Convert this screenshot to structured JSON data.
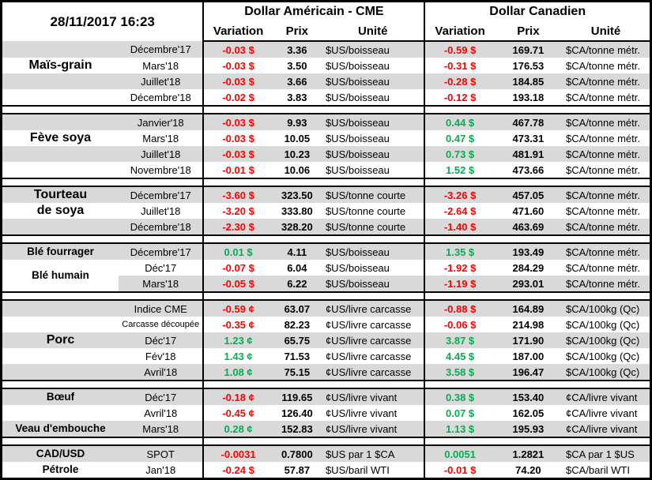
{
  "header": {
    "datetime": "28/11/2017 16:23",
    "usd_title": "Dollar Américain - CME",
    "cad_title": "Dollar Canadien",
    "col_variation": "Variation",
    "col_prix": "Prix",
    "col_unite": "Unité"
  },
  "colors": {
    "negative": "#ff0000",
    "positive": "#00b050",
    "row_shade": "#d9d9d9",
    "border": "#000000"
  },
  "groups": [
    {
      "name": "Maïs-grain",
      "rows": [
        {
          "category": "",
          "month": "Décembre'17",
          "usd_var": "-0.03 $",
          "usd_dir": "neg",
          "usd_prix": "3.36",
          "usd_unit": "$US/boisseau",
          "cad_var": "-0.59 $",
          "cad_dir": "neg",
          "cad_prix": "169.71",
          "cad_unit": "$CA/tonne métr."
        },
        {
          "category": "Maïs-grain",
          "cat_large": true,
          "month": "Mars'18",
          "usd_var": "-0.03 $",
          "usd_dir": "neg",
          "usd_prix": "3.50",
          "usd_unit": "$US/boisseau",
          "cad_var": "-0.31 $",
          "cad_dir": "neg",
          "cad_prix": "176.53",
          "cad_unit": "$CA/tonne métr."
        },
        {
          "category": "",
          "month": "Juillet'18",
          "usd_var": "-0.03 $",
          "usd_dir": "neg",
          "usd_prix": "3.66",
          "usd_unit": "$US/boisseau",
          "cad_var": "-0.28 $",
          "cad_dir": "neg",
          "cad_prix": "184.85",
          "cad_unit": "$CA/tonne métr."
        },
        {
          "category": "",
          "month": "Décembre'18",
          "usd_var": "-0.02 $",
          "usd_dir": "neg",
          "usd_prix": "3.83",
          "usd_unit": "$US/boisseau",
          "cad_var": "-0.12 $",
          "cad_dir": "neg",
          "cad_prix": "193.18",
          "cad_unit": "$CA/tonne métr."
        }
      ]
    },
    {
      "name": "Fève soya",
      "rows": [
        {
          "category": "",
          "month": "Janvier'18",
          "usd_var": "-0.03 $",
          "usd_dir": "neg",
          "usd_prix": "9.93",
          "usd_unit": "$US/boisseau",
          "cad_var": "0.44 $",
          "cad_dir": "pos",
          "cad_prix": "467.78",
          "cad_unit": "$CA/tonne métr."
        },
        {
          "category": "Fève soya",
          "cat_large": true,
          "month": "Mars'18",
          "usd_var": "-0.03 $",
          "usd_dir": "neg",
          "usd_prix": "10.05",
          "usd_unit": "$US/boisseau",
          "cad_var": "0.47 $",
          "cad_dir": "pos",
          "cad_prix": "473.31",
          "cad_unit": "$CA/tonne métr."
        },
        {
          "category": "",
          "month": "Juillet'18",
          "usd_var": "-0.03 $",
          "usd_dir": "neg",
          "usd_prix": "10.23",
          "usd_unit": "$US/boisseau",
          "cad_var": "0.73 $",
          "cad_dir": "pos",
          "cad_prix": "481.91",
          "cad_unit": "$CA/tonne métr."
        },
        {
          "category": "",
          "month": "Novembre'18",
          "usd_var": "-0.01 $",
          "usd_dir": "neg",
          "usd_prix": "10.06",
          "usd_unit": "$US/boisseau",
          "cad_var": "1.52 $",
          "cad_dir": "pos",
          "cad_prix": "473.66",
          "cad_unit": "$CA/tonne métr."
        }
      ]
    },
    {
      "name": "Tourteau de soya",
      "rows": [
        {
          "category": "Tourteau",
          "cat_large": true,
          "month": "Décembre'17",
          "usd_var": "-3.60 $",
          "usd_dir": "neg",
          "usd_prix": "323.50",
          "usd_unit": "$US/tonne courte",
          "cad_var": "-3.26 $",
          "cad_dir": "neg",
          "cad_prix": "457.05",
          "cad_unit": "$CA/tonne métr."
        },
        {
          "category": "de soya",
          "cat_large": true,
          "month": "Juillet'18",
          "usd_var": "-3.20 $",
          "usd_dir": "neg",
          "usd_prix": "333.80",
          "usd_unit": "$US/tonne courte",
          "cad_var": "-2.64 $",
          "cad_dir": "neg",
          "cad_prix": "471.60",
          "cad_unit": "$CA/tonne métr."
        },
        {
          "category": "",
          "month": "Décembre'18",
          "usd_var": "-2.30 $",
          "usd_dir": "neg",
          "usd_prix": "328.20",
          "usd_unit": "$US/tonne courte",
          "cad_var": "-1.40 $",
          "cad_dir": "neg",
          "cad_prix": "463.69",
          "cad_unit": "$CA/tonne métr."
        }
      ]
    },
    {
      "name": "Blé",
      "rows": [
        {
          "category": "Blé fourrager",
          "month": "Décembre'17",
          "usd_var": "0.01 $",
          "usd_dir": "pos",
          "usd_prix": "4.11",
          "usd_unit": "$US/boisseau",
          "cad_var": "1.35 $",
          "cad_dir": "pos",
          "cad_prix": "193.49",
          "cad_unit": "$CA/tonne métr."
        },
        {
          "category": "Blé humain",
          "category_rowspan": 2,
          "month": "Déc'17",
          "usd_var": "-0.07 $",
          "usd_dir": "neg",
          "usd_prix": "6.04",
          "usd_unit": "$US/boisseau",
          "cad_var": "-1.92 $",
          "cad_dir": "neg",
          "cad_prix": "284.29",
          "cad_unit": "$CA/tonne métr."
        },
        {
          "category": null,
          "month": "Mars'18",
          "usd_var": "-0.05 $",
          "usd_dir": "neg",
          "usd_prix": "6.22",
          "usd_unit": "$US/boisseau",
          "cad_var": "-1.19 $",
          "cad_dir": "neg",
          "cad_prix": "293.01",
          "cad_unit": "$CA/tonne métr."
        }
      ]
    },
    {
      "name": "Porc",
      "rows": [
        {
          "category": "",
          "month": "Indice CME",
          "usd_var": "-0.59 ¢",
          "usd_dir": "neg",
          "usd_prix": "63.07",
          "usd_unit": "¢US/livre carcasse",
          "cad_var": "-0.88 $",
          "cad_dir": "neg",
          "cad_prix": "164.89",
          "cad_unit": "$CA/100kg (Qc)"
        },
        {
          "category": "",
          "month": "Carcasse découpée",
          "month_small": true,
          "usd_var": "-0.35 ¢",
          "usd_dir": "neg",
          "usd_prix": "82.23",
          "usd_unit": "¢US/livre carcasse",
          "cad_var": "-0.06 $",
          "cad_dir": "neg",
          "cad_prix": "214.98",
          "cad_unit": "$CA/100kg (Qc)"
        },
        {
          "category": "Porc",
          "cat_large": true,
          "month": "Déc'17",
          "usd_var": "1.23 ¢",
          "usd_dir": "pos",
          "usd_prix": "65.75",
          "usd_unit": "¢US/livre carcasse",
          "cad_var": "3.87 $",
          "cad_dir": "pos",
          "cad_prix": "171.90",
          "cad_unit": "$CA/100kg (Qc)"
        },
        {
          "category": "",
          "month": "Fév'18",
          "usd_var": "1.43 ¢",
          "usd_dir": "pos",
          "usd_prix": "71.53",
          "usd_unit": "¢US/livre carcasse",
          "cad_var": "4.45 $",
          "cad_dir": "pos",
          "cad_prix": "187.00",
          "cad_unit": "$CA/100kg (Qc)"
        },
        {
          "category": "",
          "month": "Avril'18",
          "usd_var": "1.08 ¢",
          "usd_dir": "pos",
          "usd_prix": "75.15",
          "usd_unit": "¢US/livre carcasse",
          "cad_var": "3.58 $",
          "cad_dir": "pos",
          "cad_prix": "196.47",
          "cad_unit": "$CA/100kg (Qc)"
        }
      ]
    },
    {
      "name": "Bœuf / Veau d'embouche",
      "rows": [
        {
          "category": "Bœuf",
          "month": "Déc'17",
          "usd_var": "-0.18 ¢",
          "usd_dir": "neg",
          "usd_prix": "119.65",
          "usd_unit": "¢US/livre vivant",
          "cad_var": "0.38 $",
          "cad_dir": "pos",
          "cad_prix": "153.40",
          "cad_unit": "¢CA/livre vivant"
        },
        {
          "category": "",
          "month": "Avril'18",
          "usd_var": "-0.45 ¢",
          "usd_dir": "neg",
          "usd_prix": "126.40",
          "usd_unit": "¢US/livre vivant",
          "cad_var": "0.07 $",
          "cad_dir": "pos",
          "cad_prix": "162.05",
          "cad_unit": "¢CA/livre vivant"
        },
        {
          "category": "Veau d'embouche",
          "month": "Mars'18",
          "usd_var": "0.28 ¢",
          "usd_dir": "pos",
          "usd_prix": "152.83",
          "usd_unit": "¢US/livre vivant",
          "cad_var": "1.13 $",
          "cad_dir": "pos",
          "cad_prix": "195.93",
          "cad_unit": "¢CA/livre vivant"
        }
      ]
    },
    {
      "name": "CAD/USD / Pétrole",
      "rows": [
        {
          "category": "CAD/USD",
          "month": "SPOT",
          "usd_var": "-0.0031",
          "usd_dir": "neg",
          "usd_prix": "0.7800",
          "usd_unit": "$US par 1 $CA",
          "cad_var": "0.0051",
          "cad_dir": "pos",
          "cad_prix": "1.2821",
          "cad_unit": "$CA par 1 $US"
        },
        {
          "category": "Pétrole",
          "month": "Jan'18",
          "usd_var": "-0.24 $",
          "usd_dir": "neg",
          "usd_prix": "57.87",
          "usd_unit": "$US/baril WTI",
          "cad_var": "-0.01 $",
          "cad_dir": "neg",
          "cad_prix": "74.20",
          "cad_unit": "$CA/baril WTI"
        }
      ]
    }
  ]
}
